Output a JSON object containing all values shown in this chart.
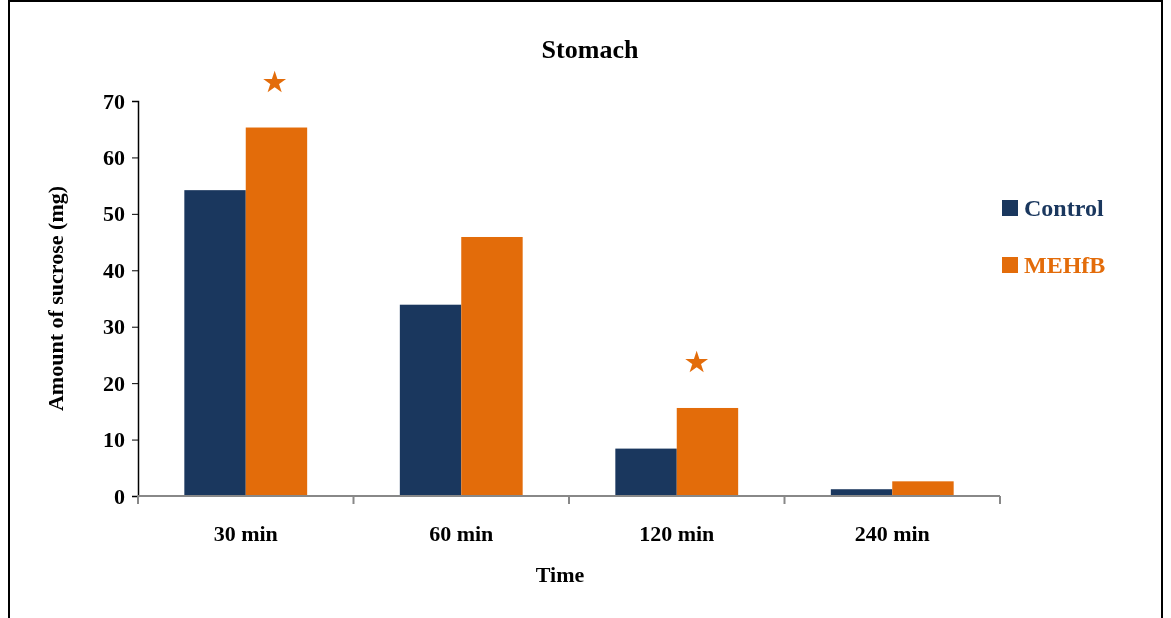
{
  "chart_data": {
    "type": "bar",
    "title": "Stomach",
    "xlabel": "Time",
    "ylabel": "Amount  of sucrose (mg)",
    "categories": [
      "30 min",
      "60 min",
      "120 min",
      "240 min"
    ],
    "series": [
      {
        "name": "Control",
        "color": "#1a375e",
        "values": [
          54.2,
          33.9,
          8.4,
          1.2
        ]
      },
      {
        "name": "MEHfB",
        "color": "#e36c0a",
        "values": [
          65.3,
          45.9,
          15.6,
          2.6
        ]
      }
    ],
    "ylim": [
      0,
      70
    ],
    "yticks": [
      0,
      10,
      20,
      30,
      40,
      50,
      60,
      70
    ],
    "grid": false,
    "legend": "right",
    "annotations": [
      "★",
      "★"
    ]
  }
}
